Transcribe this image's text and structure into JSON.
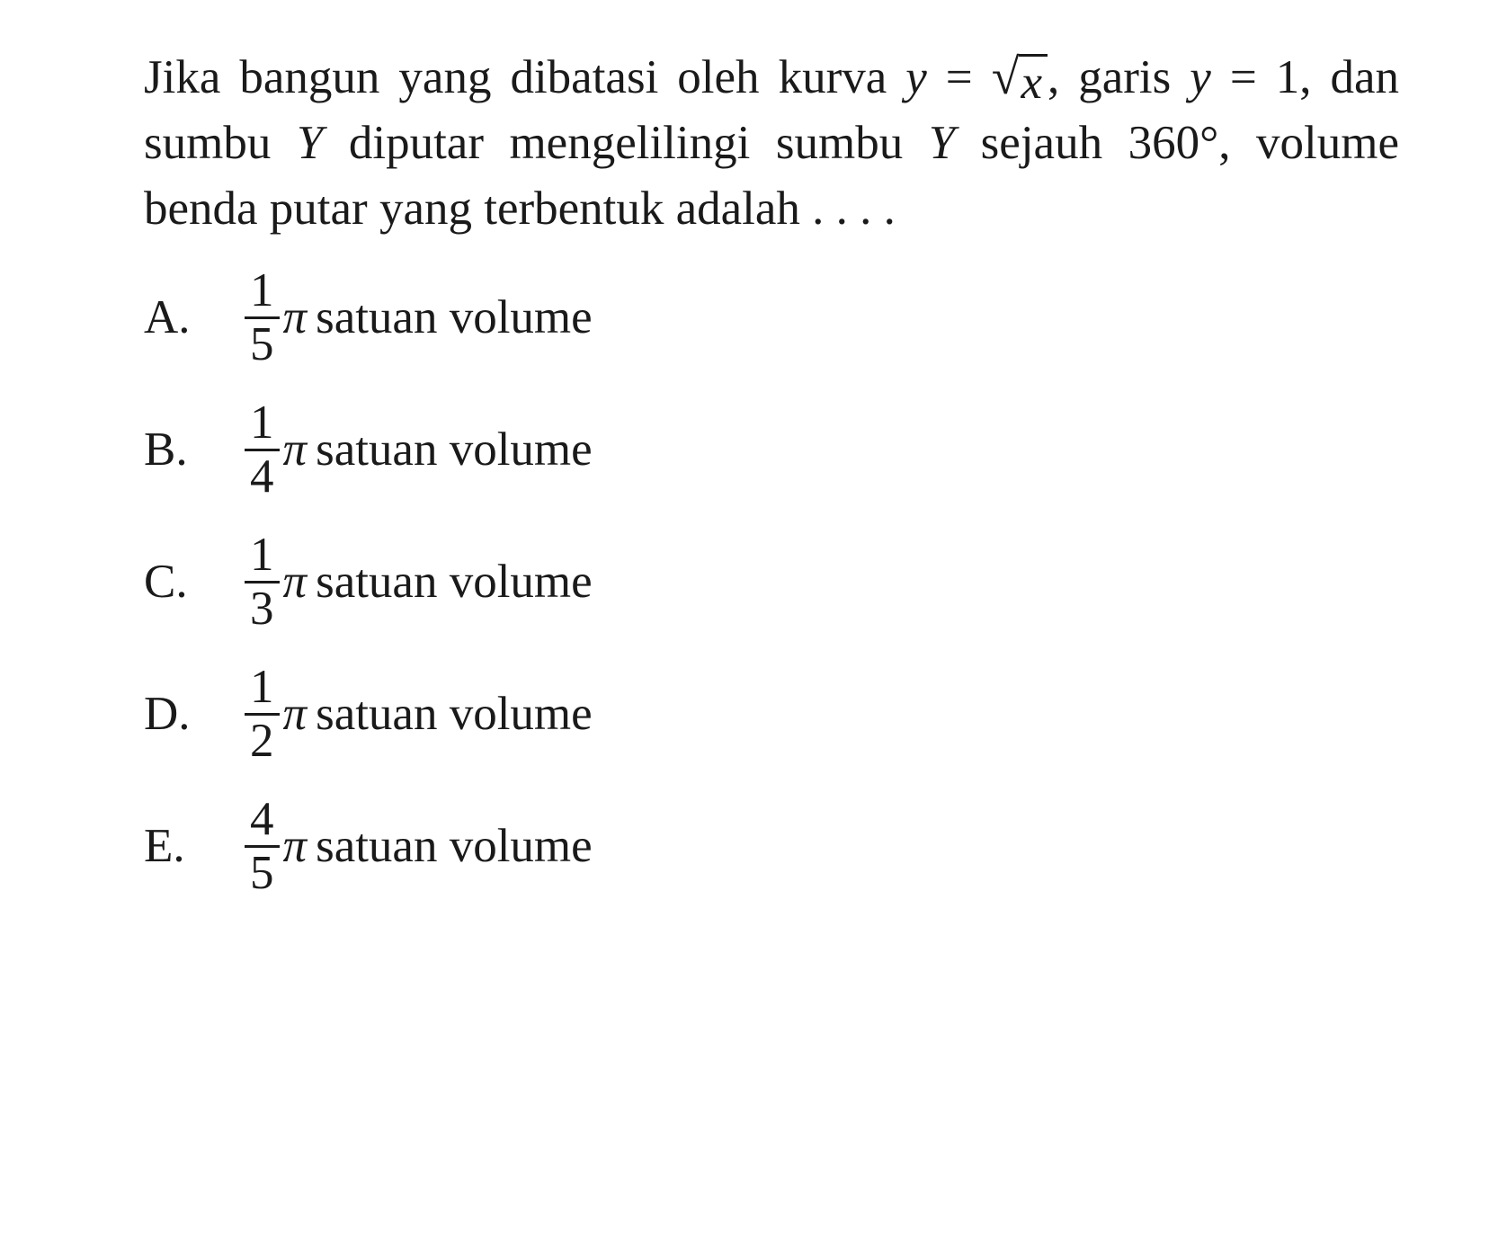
{
  "colors": {
    "text": "#1a1a1a",
    "background": "#ffffff",
    "rule": "#1a1a1a"
  },
  "typography": {
    "font_family": "Times New Roman",
    "base_fontsize_pt": 40,
    "line_height": 1.38
  },
  "question": {
    "seg1": "Jika bangun yang dibatasi oleh kurva ",
    "eq1_lhs_var": "y",
    "eq1_eq": " = ",
    "eq1_radicand": "x",
    "comma1": ",",
    "seg2": " garis ",
    "eq2_lhs_var": "y",
    "eq2_rhs": " = 1",
    "seg3": ", dan sumbu ",
    "axis1": "Y",
    "seg4": " diputar mengelilingi sumbu ",
    "axis2": "Y",
    "seg5": " sejauh 360°, volume benda putar yang terbentuk adalah . . . ."
  },
  "options": [
    {
      "letter": "A.",
      "num": "1",
      "den": "5",
      "pi": "π",
      "unit": "satuan volume"
    },
    {
      "letter": "B.",
      "num": "1",
      "den": "4",
      "pi": "π",
      "unit": "satuan volume"
    },
    {
      "letter": "C.",
      "num": "1",
      "den": "3",
      "pi": "π",
      "unit": "satuan volume"
    },
    {
      "letter": "D.",
      "num": "1",
      "den": "2",
      "pi": "π",
      "unit": "satuan volume"
    },
    {
      "letter": "E.",
      "num": "4",
      "den": "5",
      "pi": "π",
      "unit": "satuan volume"
    }
  ]
}
